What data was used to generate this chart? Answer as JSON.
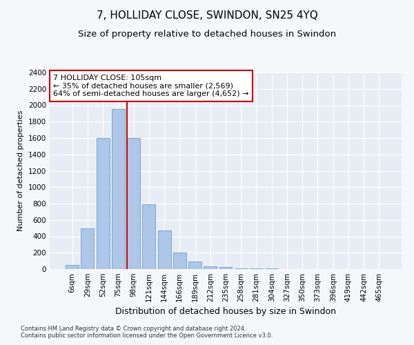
{
  "title": "7, HOLLIDAY CLOSE, SWINDON, SN25 4YQ",
  "subtitle": "Size of property relative to detached houses in Swindon",
  "xlabel": "Distribution of detached houses by size in Swindon",
  "ylabel": "Number of detached properties",
  "categories": [
    "6sqm",
    "29sqm",
    "52sqm",
    "75sqm",
    "98sqm",
    "121sqm",
    "144sqm",
    "166sqm",
    "189sqm",
    "212sqm",
    "235sqm",
    "258sqm",
    "281sqm",
    "304sqm",
    "327sqm",
    "350sqm",
    "373sqm",
    "396sqm",
    "419sqm",
    "442sqm",
    "465sqm"
  ],
  "values": [
    50,
    500,
    1600,
    1950,
    1600,
    790,
    470,
    200,
    90,
    35,
    25,
    10,
    5,
    5,
    0,
    0,
    0,
    0,
    0,
    0,
    0
  ],
  "bar_color": "#aec6e8",
  "bar_edge_color": "#6a9fc8",
  "highlight_bar_index": 4,
  "highlight_color": "#cc0000",
  "annotation_text": "7 HOLLIDAY CLOSE: 105sqm\n← 35% of detached houses are smaller (2,569)\n64% of semi-detached houses are larger (4,652) →",
  "annotation_box_color": "#ffffff",
  "annotation_box_edge": "#cc0000",
  "ylim": [
    0,
    2400
  ],
  "yticks": [
    0,
    200,
    400,
    600,
    800,
    1000,
    1200,
    1400,
    1600,
    1800,
    2000,
    2200,
    2400
  ],
  "background_color": "#f5f7fb",
  "plot_bg_color": "#e8edf5",
  "footer1": "Contains HM Land Registry data © Crown copyright and database right 2024.",
  "footer2": "Contains public sector information licensed under the Open Government Licence v3.0.",
  "title_fontsize": 11,
  "subtitle_fontsize": 9.5,
  "xlabel_fontsize": 9,
  "ylabel_fontsize": 8,
  "tick_fontsize": 7.5,
  "annotation_fontsize": 8,
  "footer_fontsize": 6
}
